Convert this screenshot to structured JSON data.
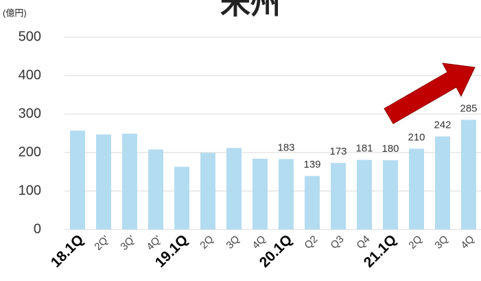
{
  "chart_data": {
    "type": "bar",
    "title": "米州",
    "unit": "(億円)",
    "categories": [
      "18.1Q",
      "2Q'",
      "3Q'",
      "4Q'",
      "19.1Q",
      "2Q",
      "3Q",
      "4Q",
      "20.1Q",
      "Q2",
      "Q3",
      "Q4",
      "21.1Q",
      "2Q",
      "3Q",
      "4Q"
    ],
    "values": [
      257,
      247,
      249,
      208,
      163,
      199,
      212,
      184,
      183,
      139,
      173,
      181,
      180,
      210,
      242,
      285
    ],
    "value_labels": [
      null,
      null,
      null,
      null,
      null,
      null,
      null,
      null,
      "183",
      "139",
      "173",
      "181",
      "180",
      "210",
      "242",
      "285"
    ],
    "bold_categories": [
      0,
      4,
      8,
      12
    ],
    "color": "#b4dcf0",
    "ylim": [
      0,
      500
    ],
    "yticks": [
      0,
      100,
      200,
      300,
      400,
      500
    ],
    "grid": true
  }
}
